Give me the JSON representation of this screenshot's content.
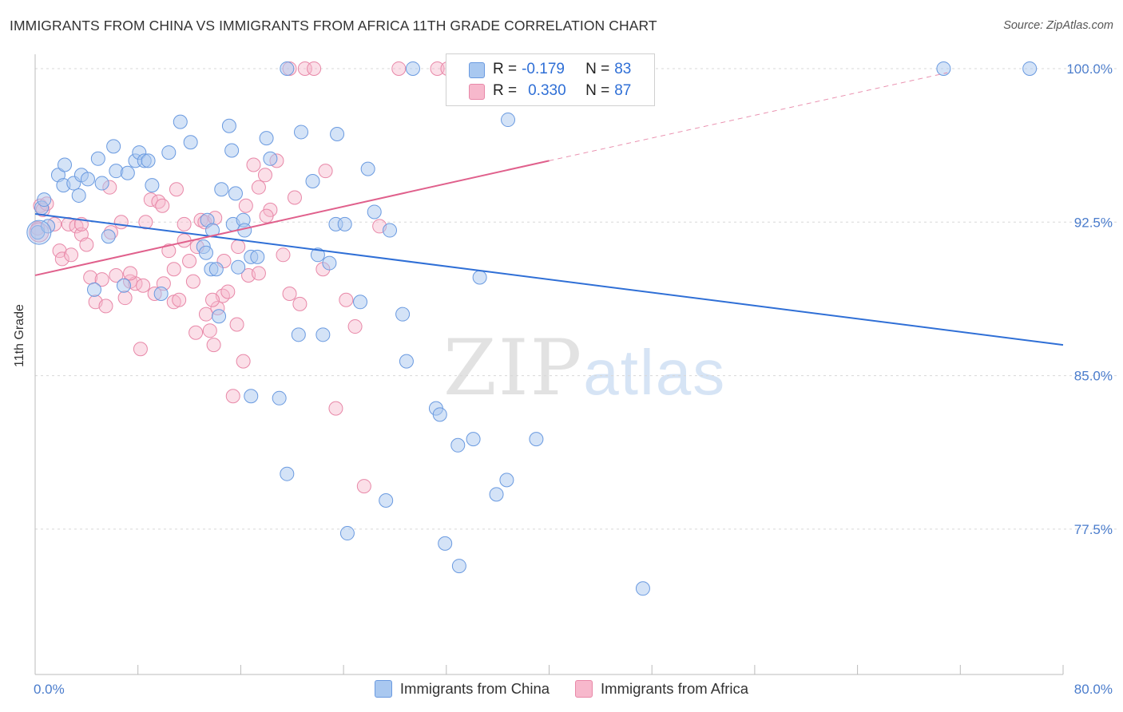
{
  "title": "IMMIGRANTS FROM CHINA VS IMMIGRANTS FROM AFRICA 11TH GRADE CORRELATION CHART",
  "source": "Source: ZipAtlas.com",
  "watermark": {
    "zip": "ZIP",
    "atlas": "atlas"
  },
  "legend": {
    "china": {
      "r_label": "R =",
      "r": "-0.179",
      "n_label": "N =",
      "n": "83",
      "name": "Immigrants from China"
    },
    "africa": {
      "r_label": "R =",
      "r": "0.330",
      "n_label": "N =",
      "n": "87",
      "name": "Immigrants from Africa"
    }
  },
  "colors": {
    "china_fill": "#a9c8f0",
    "china_stroke": "#6a9ae0",
    "china_line": "#2f6fd6",
    "africa_fill": "#f7b8cc",
    "africa_stroke": "#e888a8",
    "africa_line": "#e0608c",
    "tick_text": "#4a7ccc",
    "grid": "#d8d8d8"
  },
  "chart_data": {
    "type": "scatter",
    "title": "IMMIGRANTS FROM CHINA VS IMMIGRANTS FROM AFRICA 11TH GRADE CORRELATION CHART",
    "xlabel": "",
    "ylabel": "11th Grade",
    "xlim": [
      0,
      80
    ],
    "ylim": [
      70.4,
      100.7
    ],
    "x_tick_labels": [
      "0.0%",
      "80.0%"
    ],
    "y_ticks": [
      77.5,
      85.0,
      92.5,
      100.0
    ],
    "y_tick_labels": [
      "77.5%",
      "85.0%",
      "92.5%",
      "100.0%"
    ],
    "grid": true,
    "legend_position": "top-center",
    "series": [
      {
        "name": "Immigrants from China",
        "trend": {
          "x": [
            0,
            80
          ],
          "y": [
            92.9,
            86.5
          ]
        },
        "points": [
          [
            0.2,
            92.0
          ],
          [
            0.5,
            93.2
          ],
          [
            0.7,
            93.6
          ],
          [
            1.0,
            92.3
          ],
          [
            1.8,
            94.8
          ],
          [
            2.3,
            95.3
          ],
          [
            2.2,
            94.3
          ],
          [
            3.0,
            94.4
          ],
          [
            3.4,
            93.8
          ],
          [
            3.6,
            94.8
          ],
          [
            4.1,
            94.6
          ],
          [
            4.9,
            95.6
          ],
          [
            5.2,
            94.4
          ],
          [
            6.1,
            96.2
          ],
          [
            6.3,
            95.0
          ],
          [
            7.2,
            94.9
          ],
          [
            7.8,
            95.5
          ],
          [
            8.1,
            95.9
          ],
          [
            8.5,
            95.5
          ],
          [
            8.8,
            95.5
          ],
          [
            9.1,
            94.3
          ],
          [
            10.4,
            95.9
          ],
          [
            11.3,
            97.4
          ],
          [
            12.1,
            96.4
          ],
          [
            13.1,
            91.3
          ],
          [
            13.4,
            92.6
          ],
          [
            13.8,
            92.1
          ],
          [
            13.7,
            90.2
          ],
          [
            14.1,
            90.2
          ],
          [
            14.5,
            94.1
          ],
          [
            15.1,
            97.2
          ],
          [
            15.3,
            96.0
          ],
          [
            15.6,
            93.9
          ],
          [
            15.4,
            92.4
          ],
          [
            15.8,
            90.3
          ],
          [
            16.2,
            92.6
          ],
          [
            16.3,
            92.1
          ],
          [
            16.8,
            90.8
          ],
          [
            17.3,
            90.8
          ],
          [
            18.0,
            96.6
          ],
          [
            18.3,
            95.6
          ],
          [
            19.6,
            100.0
          ],
          [
            20.7,
            96.9
          ],
          [
            21.6,
            94.5
          ],
          [
            22.0,
            90.9
          ],
          [
            22.4,
            87.0
          ],
          [
            22.9,
            90.5
          ],
          [
            23.4,
            92.4
          ],
          [
            23.5,
            96.8
          ],
          [
            24.1,
            92.4
          ],
          [
            25.3,
            88.6
          ],
          [
            25.9,
            95.1
          ],
          [
            26.4,
            93.0
          ],
          [
            27.6,
            92.1
          ],
          [
            28.6,
            88.0
          ],
          [
            28.9,
            85.7
          ],
          [
            29.4,
            100.0
          ],
          [
            31.2,
            83.4
          ],
          [
            31.5,
            83.1
          ],
          [
            32.9,
            81.6
          ],
          [
            33.0,
            75.7
          ],
          [
            34.1,
            81.9
          ],
          [
            34.6,
            89.8
          ],
          [
            35.9,
            79.2
          ],
          [
            36.7,
            79.9
          ],
          [
            36.8,
            97.5
          ],
          [
            39.0,
            81.9
          ],
          [
            47.3,
            74.6
          ],
          [
            70.7,
            100.0
          ],
          [
            77.4,
            100.0
          ],
          [
            4.6,
            89.2
          ],
          [
            5.7,
            91.8
          ],
          [
            6.9,
            89.4
          ],
          [
            9.8,
            89.0
          ],
          [
            13.3,
            91.0
          ],
          [
            14.3,
            87.9
          ],
          [
            16.8,
            84.0
          ],
          [
            19.0,
            83.9
          ],
          [
            19.6,
            80.2
          ],
          [
            20.5,
            87.0
          ],
          [
            24.3,
            77.3
          ],
          [
            27.3,
            78.9
          ],
          [
            31.9,
            76.8
          ]
        ]
      },
      {
        "name": "Immigrants from Africa",
        "trend": {
          "x": [
            0,
            40
          ],
          "y": [
            89.9,
            95.5
          ]
        },
        "trend_extension": {
          "x": [
            40,
            71
          ],
          "y": [
            95.5,
            99.8
          ]
        },
        "points": [
          [
            0.2,
            92.2
          ],
          [
            0.4,
            93.3
          ],
          [
            0.6,
            93.1
          ],
          [
            0.9,
            93.4
          ],
          [
            1.5,
            92.4
          ],
          [
            1.9,
            91.1
          ],
          [
            2.1,
            90.7
          ],
          [
            2.6,
            92.4
          ],
          [
            2.8,
            90.9
          ],
          [
            3.2,
            92.3
          ],
          [
            3.6,
            91.9
          ],
          [
            4.0,
            91.4
          ],
          [
            4.3,
            89.8
          ],
          [
            4.7,
            88.6
          ],
          [
            5.2,
            89.7
          ],
          [
            5.5,
            88.4
          ],
          [
            5.9,
            92.0
          ],
          [
            6.3,
            89.9
          ],
          [
            6.7,
            92.5
          ],
          [
            7.0,
            88.8
          ],
          [
            7.4,
            89.6
          ],
          [
            7.8,
            89.5
          ],
          [
            8.2,
            86.3
          ],
          [
            8.6,
            92.5
          ],
          [
            9.0,
            93.6
          ],
          [
            9.3,
            89.0
          ],
          [
            9.6,
            93.5
          ],
          [
            10.0,
            89.5
          ],
          [
            10.4,
            91.1
          ],
          [
            10.8,
            88.6
          ],
          [
            11.2,
            88.7
          ],
          [
            11.6,
            92.4
          ],
          [
            12.0,
            90.6
          ],
          [
            12.3,
            89.6
          ],
          [
            12.6,
            91.3
          ],
          [
            12.9,
            92.6
          ],
          [
            13.3,
            88.0
          ],
          [
            13.6,
            87.2
          ],
          [
            13.9,
            86.5
          ],
          [
            14.2,
            88.3
          ],
          [
            14.6,
            88.9
          ],
          [
            15.0,
            89.1
          ],
          [
            15.4,
            84.0
          ],
          [
            15.8,
            91.3
          ],
          [
            16.2,
            85.7
          ],
          [
            16.6,
            89.9
          ],
          [
            17.0,
            95.3
          ],
          [
            17.4,
            94.2
          ],
          [
            17.9,
            94.8
          ],
          [
            18.3,
            93.1
          ],
          [
            18.8,
            95.5
          ],
          [
            19.3,
            90.9
          ],
          [
            19.8,
            89.0
          ],
          [
            20.2,
            93.7
          ],
          [
            20.6,
            88.5
          ],
          [
            21.0,
            100.0
          ],
          [
            22.4,
            90.2
          ],
          [
            22.6,
            95.0
          ],
          [
            23.4,
            83.4
          ],
          [
            24.2,
            88.7
          ],
          [
            24.9,
            87.4
          ],
          [
            25.6,
            79.6
          ],
          [
            26.8,
            92.3
          ],
          [
            28.3,
            100.0
          ],
          [
            31.3,
            100.0
          ],
          [
            32.1,
            100.0
          ],
          [
            33.5,
            100.0
          ],
          [
            37.3,
            100.0
          ],
          [
            7.4,
            90.0
          ],
          [
            9.9,
            93.3
          ],
          [
            10.8,
            90.2
          ],
          [
            11.6,
            91.6
          ],
          [
            12.5,
            87.1
          ],
          [
            13.2,
            92.5
          ],
          [
            14.0,
            92.7
          ],
          [
            14.7,
            90.6
          ],
          [
            15.7,
            87.5
          ],
          [
            16.4,
            93.3
          ],
          [
            17.4,
            90.0
          ],
          [
            18.0,
            92.8
          ],
          [
            19.8,
            100.0
          ],
          [
            21.7,
            100.0
          ],
          [
            3.6,
            92.4
          ],
          [
            5.8,
            94.2
          ],
          [
            8.4,
            89.4
          ],
          [
            11.0,
            94.1
          ],
          [
            13.8,
            88.7
          ]
        ]
      }
    ]
  }
}
